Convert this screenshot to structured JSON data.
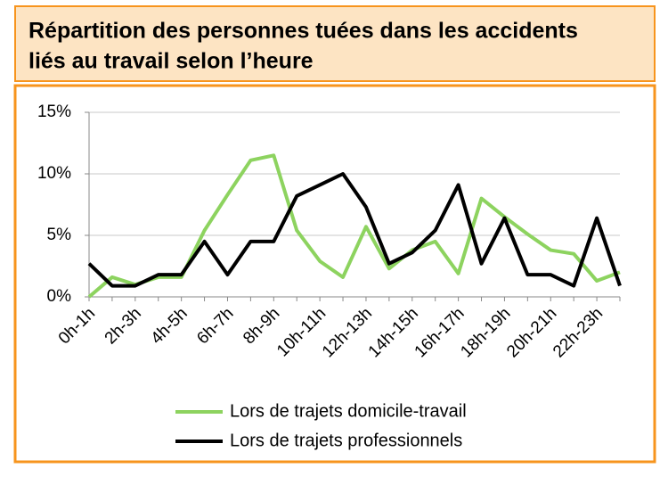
{
  "chart_data": {
    "type": "line",
    "title": [
      "Répartition des personnes tuées dans les accidents",
      "liés au travail selon l’heure"
    ],
    "categories": [
      "0h-1h",
      null,
      "2h-3h",
      null,
      "4h-5h",
      null,
      "6h-7h",
      null,
      "8h-9h",
      null,
      "10h-11h",
      null,
      "12h-13h",
      null,
      "14h-15h",
      null,
      "16h-17h",
      null,
      "18h-19h",
      null,
      "20h-21h",
      null,
      "22h-23h",
      null
    ],
    "series": [
      {
        "name": "Lors de trajets domicile-travail",
        "color": "#8dd35f",
        "values": [
          0,
          1.6,
          1.0,
          1.6,
          1.6,
          5.4,
          8.3,
          11.1,
          11.5,
          5.4,
          2.9,
          1.6,
          5.7,
          2.3,
          3.8,
          4.5,
          1.9,
          8.0,
          6.5,
          5.1,
          3.8,
          3.5,
          1.3,
          2.0
        ]
      },
      {
        "name": "Lors de trajets professionnels",
        "color": "#000000",
        "values": [
          2.7,
          0.9,
          0.9,
          1.8,
          1.8,
          4.5,
          1.8,
          4.5,
          4.5,
          8.2,
          9.1,
          10.0,
          7.3,
          2.7,
          3.6,
          5.4,
          9.1,
          2.7,
          6.4,
          1.8,
          1.8,
          0.9,
          6.4,
          0.9
        ]
      }
    ],
    "ylim": [
      0,
      15
    ],
    "yticks": [
      {
        "value": 0,
        "label": "0%"
      },
      {
        "value": 5,
        "label": "5%"
      },
      {
        "value": 10,
        "label": "10%"
      },
      {
        "value": 15,
        "label": "15%"
      }
    ],
    "grid": true
  }
}
